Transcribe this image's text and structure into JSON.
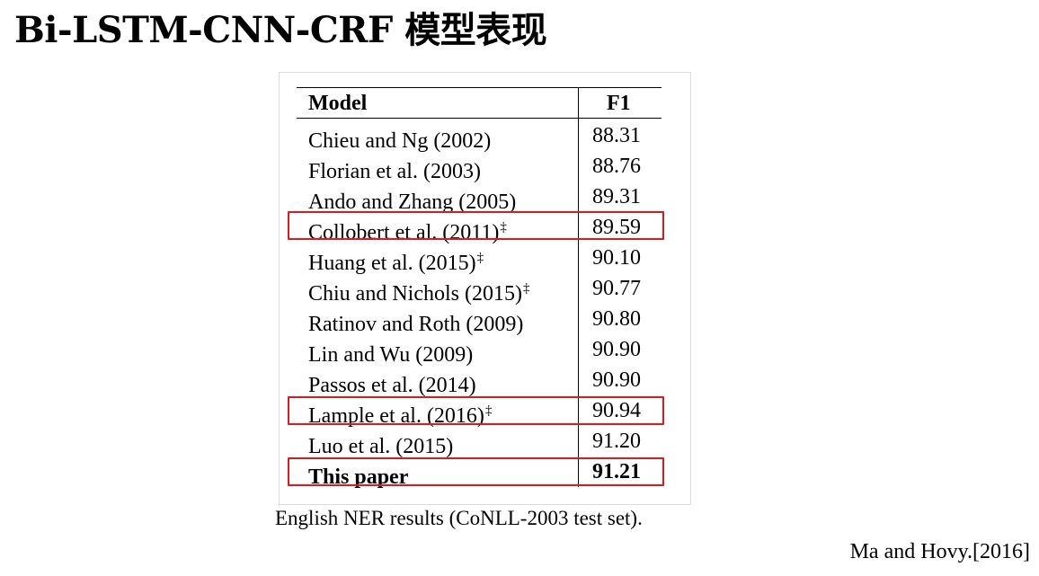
{
  "slide": {
    "title": "Bi-LSTM-CNN-CRF 模型表现",
    "caption": "English NER results (CoNLL-2003 test set).",
    "citation": "Ma and Hovy.[2016]"
  },
  "table": {
    "headers": {
      "model": "Model",
      "f1": "F1"
    },
    "rows": [
      {
        "model": "Chieu and Ng (2002)",
        "dagger": "",
        "f1": "88.31"
      },
      {
        "model": "Florian et al. (2003)",
        "dagger": "",
        "f1": "88.76"
      },
      {
        "model": "Ando and Zhang (2005)",
        "dagger": "",
        "f1": "89.31"
      },
      {
        "model": "Collobert et al. (2011)",
        "dagger": "‡",
        "f1": "89.59"
      },
      {
        "model": "Huang et al. (2015)",
        "dagger": "‡",
        "f1": "90.10"
      },
      {
        "model": "Chiu and Nichols (2015)",
        "dagger": "‡",
        "f1": "90.77"
      },
      {
        "model": "Ratinov and Roth (2009)",
        "dagger": "",
        "f1": "90.80"
      },
      {
        "model": "Lin and Wu (2009)",
        "dagger": "",
        "f1": "90.90"
      },
      {
        "model": "Passos et al. (2014)",
        "dagger": "",
        "f1": "90.90"
      },
      {
        "model": "Lample et al. (2016)",
        "dagger": "‡",
        "f1": "90.94"
      },
      {
        "model": "Luo et al. (2015)",
        "dagger": "",
        "f1": "91.20"
      },
      {
        "model": "This paper",
        "dagger": "",
        "f1": "91.21"
      }
    ],
    "highlighted_rows": [
      "Collobert et al. (2011)",
      "Lample et al. (2016)",
      "This paper"
    ],
    "highlight_color": "#e0191e"
  }
}
